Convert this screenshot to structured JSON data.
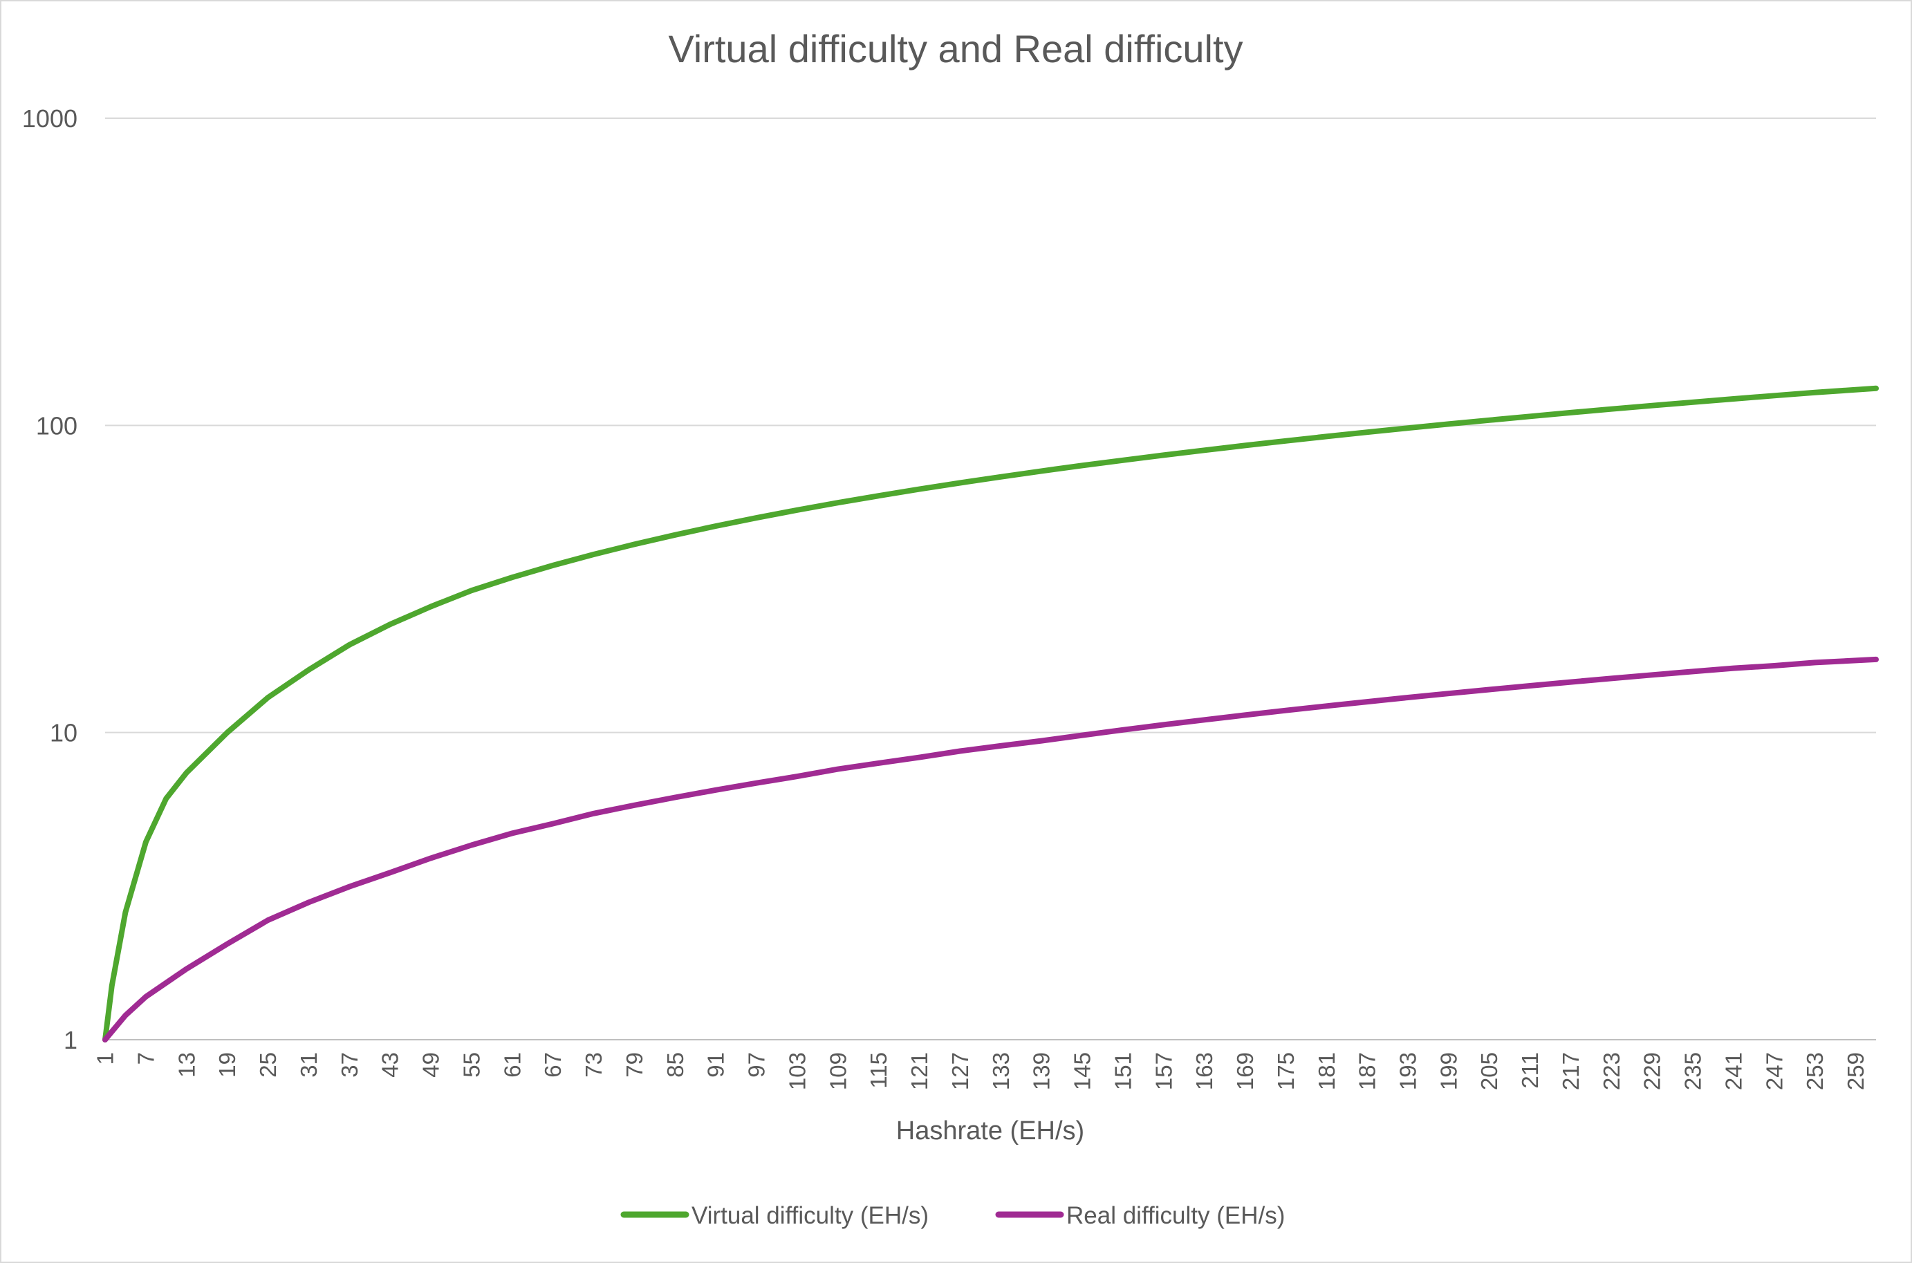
{
  "chart_data": {
    "type": "line",
    "title": "Virtual difficulty and Real difficulty",
    "xlabel": "Hashrate (EH/s)",
    "ylabel": "",
    "yscale": "log",
    "ylim": [
      1,
      1000
    ],
    "yticks": [
      "1",
      "10",
      "100",
      "1000"
    ],
    "xlim": [
      1,
      262
    ],
    "xtick_labels": [
      "1",
      "7",
      "13",
      "19",
      "25",
      "31",
      "37",
      "43",
      "49",
      "55",
      "61",
      "67",
      "73",
      "79",
      "85",
      "91",
      "97",
      "103",
      "109",
      "115",
      "121",
      "127",
      "133",
      "139",
      "145",
      "151",
      "157",
      "163",
      "169",
      "175",
      "181",
      "187",
      "193",
      "199",
      "205",
      "211",
      "217",
      "223",
      "229",
      "235",
      "241",
      "247",
      "253",
      "259"
    ],
    "grid": true,
    "legend_position": "bottom",
    "series": [
      {
        "name": "Virtual difficulty (EH/s)",
        "color": "#4ea72e",
        "points": [
          [
            1,
            1
          ],
          [
            2,
            1.5
          ],
          [
            4,
            2.6
          ],
          [
            7,
            4.4
          ],
          [
            10,
            6.1
          ],
          [
            13,
            7.4
          ],
          [
            19,
            10
          ],
          [
            25,
            13
          ],
          [
            31,
            16
          ],
          [
            37,
            19.3
          ],
          [
            43,
            22.5
          ],
          [
            49,
            25.7
          ],
          [
            55,
            29
          ],
          [
            61,
            32
          ],
          [
            67,
            35
          ],
          [
            73,
            38
          ],
          [
            79,
            41
          ],
          [
            85,
            44
          ],
          [
            91,
            47
          ],
          [
            97,
            50
          ],
          [
            103,
            53
          ],
          [
            109,
            56
          ],
          [
            115,
            59
          ],
          [
            121,
            62
          ],
          [
            127,
            65
          ],
          [
            133,
            68
          ],
          [
            139,
            71
          ],
          [
            145,
            74
          ],
          [
            151,
            77
          ],
          [
            157,
            80
          ],
          [
            163,
            83
          ],
          [
            169,
            86
          ],
          [
            175,
            89
          ],
          [
            181,
            92
          ],
          [
            187,
            95
          ],
          [
            193,
            98
          ],
          [
            199,
            101
          ],
          [
            205,
            104
          ],
          [
            211,
            107
          ],
          [
            217,
            110
          ],
          [
            223,
            113
          ],
          [
            229,
            116
          ],
          [
            235,
            119
          ],
          [
            241,
            122
          ],
          [
            247,
            125
          ],
          [
            253,
            128
          ],
          [
            262,
            132
          ]
        ]
      },
      {
        "name": "Real difficulty (EH/s)",
        "color": "#a02b93",
        "points": [
          [
            1,
            1
          ],
          [
            4,
            1.2
          ],
          [
            7,
            1.38
          ],
          [
            13,
            1.7
          ],
          [
            19,
            2.05
          ],
          [
            25,
            2.45
          ],
          [
            31,
            2.8
          ],
          [
            37,
            3.15
          ],
          [
            43,
            3.5
          ],
          [
            49,
            3.9
          ],
          [
            55,
            4.3
          ],
          [
            61,
            4.7
          ],
          [
            67,
            5.05
          ],
          [
            73,
            5.45
          ],
          [
            79,
            5.8
          ],
          [
            85,
            6.15
          ],
          [
            91,
            6.5
          ],
          [
            97,
            6.85
          ],
          [
            103,
            7.2
          ],
          [
            109,
            7.6
          ],
          [
            115,
            7.95
          ],
          [
            121,
            8.3
          ],
          [
            127,
            8.7
          ],
          [
            133,
            9.05
          ],
          [
            139,
            9.4
          ],
          [
            145,
            9.8
          ],
          [
            151,
            10.2
          ],
          [
            157,
            10.6
          ],
          [
            163,
            11
          ],
          [
            169,
            11.4
          ],
          [
            175,
            11.8
          ],
          [
            181,
            12.2
          ],
          [
            187,
            12.6
          ],
          [
            193,
            13
          ],
          [
            199,
            13.4
          ],
          [
            205,
            13.8
          ],
          [
            211,
            14.2
          ],
          [
            217,
            14.6
          ],
          [
            223,
            15
          ],
          [
            229,
            15.4
          ],
          [
            235,
            15.8
          ],
          [
            241,
            16.2
          ],
          [
            247,
            16.5
          ],
          [
            253,
            16.9
          ],
          [
            262,
            17.3
          ]
        ]
      }
    ]
  }
}
